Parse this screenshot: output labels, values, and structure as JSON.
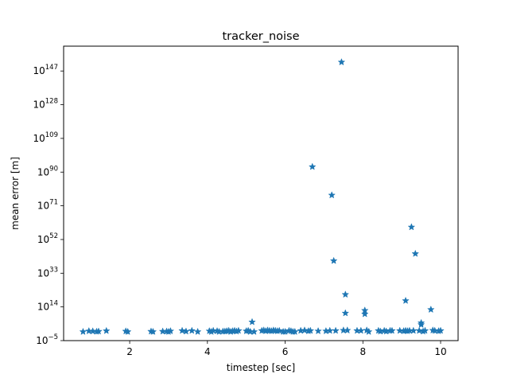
{
  "chart_data": {
    "type": "scatter",
    "title": "tracker_noise",
    "xlabel": "timestep [sec]",
    "ylabel": "mean error [m]",
    "xlim": [
      0.3,
      10.45
    ],
    "ylim_log10": [
      -5,
      161
    ],
    "yscale": "log",
    "marker": "star",
    "color": "#1f77b4",
    "grid": false,
    "x_ticks": [
      {
        "value": 2,
        "label": "2"
      },
      {
        "value": 4,
        "label": "4"
      },
      {
        "value": 6,
        "label": "6"
      },
      {
        "value": 8,
        "label": "8"
      },
      {
        "value": 10,
        "label": "10"
      }
    ],
    "y_ticks": [
      {
        "exp": -5,
        "base": "10",
        "sup": "−5"
      },
      {
        "exp": 14,
        "base": "10",
        "sup": "14"
      },
      {
        "exp": 33,
        "base": "10",
        "sup": "33"
      },
      {
        "exp": 52,
        "base": "10",
        "sup": "52"
      },
      {
        "exp": 71,
        "base": "10",
        "sup": "71"
      },
      {
        "exp": 90,
        "base": "10",
        "sup": "90"
      },
      {
        "exp": 109,
        "base": "10",
        "sup": "109"
      },
      {
        "exp": 128,
        "base": "10",
        "sup": "128"
      },
      {
        "exp": 147,
        "base": "10",
        "sup": "147"
      }
    ],
    "points_log10": [
      [
        0.8,
        0
      ],
      [
        0.95,
        0.4
      ],
      [
        1.05,
        0.3
      ],
      [
        1.15,
        0.1
      ],
      [
        1.2,
        0.2
      ],
      [
        1.4,
        0.5
      ],
      [
        1.9,
        0.3
      ],
      [
        1.95,
        0
      ],
      [
        2.55,
        0.2
      ],
      [
        2.6,
        0
      ],
      [
        2.85,
        0.2
      ],
      [
        2.95,
        0.2
      ],
      [
        3.0,
        0
      ],
      [
        3.05,
        0.4
      ],
      [
        3.35,
        0.6
      ],
      [
        3.45,
        0.2
      ],
      [
        3.6,
        0.6
      ],
      [
        3.75,
        0
      ],
      [
        4.05,
        0.4
      ],
      [
        4.1,
        0
      ],
      [
        4.15,
        0.6
      ],
      [
        4.25,
        0.4
      ],
      [
        4.3,
        0
      ],
      [
        4.4,
        0.2
      ],
      [
        4.45,
        0.2
      ],
      [
        4.5,
        0.4
      ],
      [
        4.55,
        0.6
      ],
      [
        4.6,
        0
      ],
      [
        4.65,
        0.4
      ],
      [
        4.7,
        0.6
      ],
      [
        4.75,
        0.2
      ],
      [
        4.8,
        0.6
      ],
      [
        5.0,
        0.4
      ],
      [
        5.05,
        0.6
      ],
      [
        5.1,
        0
      ],
      [
        5.15,
        5.5
      ],
      [
        5.2,
        0
      ],
      [
        5.4,
        0.6
      ],
      [
        5.45,
        0.8
      ],
      [
        5.5,
        0.4
      ],
      [
        5.55,
        0.8
      ],
      [
        5.6,
        0.6
      ],
      [
        5.65,
        0.4
      ],
      [
        5.7,
        0.8
      ],
      [
        5.75,
        0.6
      ],
      [
        5.8,
        0.4
      ],
      [
        5.85,
        0.6
      ],
      [
        5.95,
        0
      ],
      [
        6.0,
        0
      ],
      [
        6.1,
        0.6
      ],
      [
        6.15,
        0.4
      ],
      [
        6.2,
        0
      ],
      [
        6.25,
        0
      ],
      [
        6.4,
        0.6
      ],
      [
        6.5,
        0.8
      ],
      [
        6.6,
        0.4
      ],
      [
        6.65,
        0.6
      ],
      [
        6.7,
        93
      ],
      [
        6.85,
        0.4
      ],
      [
        7.05,
        0.4
      ],
      [
        7.15,
        0.6
      ],
      [
        7.2,
        77
      ],
      [
        7.25,
        40
      ],
      [
        7.3,
        0.6
      ],
      [
        7.45,
        152
      ],
      [
        7.5,
        0.8
      ],
      [
        7.55,
        21
      ],
      [
        7.55,
        10.5
      ],
      [
        7.6,
        0.8
      ],
      [
        7.85,
        0.6
      ],
      [
        7.95,
        0.6
      ],
      [
        8.05,
        12
      ],
      [
        8.05,
        10
      ],
      [
        8.1,
        0.8
      ],
      [
        8.15,
        0
      ],
      [
        8.4,
        0.6
      ],
      [
        8.45,
        0.2
      ],
      [
        8.55,
        0.6
      ],
      [
        8.6,
        0.2
      ],
      [
        8.7,
        0.6
      ],
      [
        8.75,
        0.6
      ],
      [
        8.95,
        0.6
      ],
      [
        9.05,
        0.4
      ],
      [
        9.1,
        0.6
      ],
      [
        9.1,
        17.5
      ],
      [
        9.15,
        0.4
      ],
      [
        9.2,
        0.6
      ],
      [
        9.25,
        59
      ],
      [
        9.3,
        0.6
      ],
      [
        9.35,
        44
      ],
      [
        9.45,
        0.6
      ],
      [
        9.5,
        4
      ],
      [
        9.5,
        5
      ],
      [
        9.55,
        0.2
      ],
      [
        9.6,
        0.6
      ],
      [
        9.75,
        12.5
      ],
      [
        9.8,
        0.8
      ],
      [
        9.85,
        0.6
      ],
      [
        9.95,
        0.4
      ],
      [
        10.0,
        0.6
      ]
    ]
  }
}
